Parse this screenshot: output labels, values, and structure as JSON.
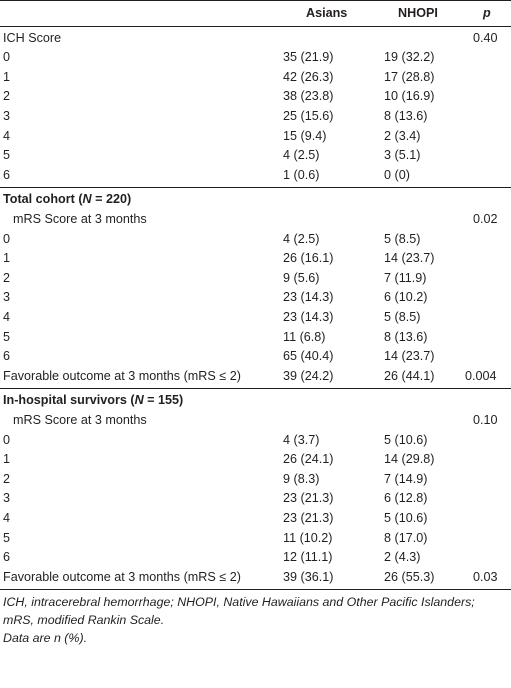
{
  "header": {
    "col_label": "",
    "col_asians": "Asians",
    "col_nhopi": "NHOPI",
    "col_p": "p"
  },
  "ich": {
    "title": "ICH Score",
    "p": "0.40",
    "rows": [
      {
        "label": "0",
        "asians": "35 (21.9)",
        "nhopi": "19 (32.2)"
      },
      {
        "label": "1",
        "asians": "42 (26.3)",
        "nhopi": "17 (28.8)"
      },
      {
        "label": "2",
        "asians": "38 (23.8)",
        "nhopi": "10 (16.9)"
      },
      {
        "label": "3",
        "asians": "25 (15.6)",
        "nhopi": "8 (13.6)"
      },
      {
        "label": "4",
        "asians": "15 (9.4)",
        "nhopi": "2 (3.4)"
      },
      {
        "label": "5",
        "asians": "4 (2.5)",
        "nhopi": "3 (5.1)"
      },
      {
        "label": "6",
        "asians": "1 (0.6)",
        "nhopi": "0 (0)"
      }
    ]
  },
  "total": {
    "heading_prefix": "Total cohort (",
    "heading_n": "N",
    "heading_suffix": " = 220)",
    "mrs_title": "mRS Score at 3 months",
    "p": "0.02",
    "rows": [
      {
        "label": "0",
        "asians": "4 (2.5)",
        "nhopi": "5 (8.5)"
      },
      {
        "label": "1",
        "asians": "26 (16.1)",
        "nhopi": "14 (23.7)"
      },
      {
        "label": "2",
        "asians": "9 (5.6)",
        "nhopi": "7 (11.9)"
      },
      {
        "label": "3",
        "asians": "23 (14.3)",
        "nhopi": "6 (10.2)"
      },
      {
        "label": "4",
        "asians": "23 (14.3)",
        "nhopi": "5 (8.5)"
      },
      {
        "label": "5",
        "asians": "11 (6.8)",
        "nhopi": "8 (13.6)"
      },
      {
        "label": "6",
        "asians": "65 (40.4)",
        "nhopi": "14 (23.7)"
      }
    ],
    "favorable": {
      "label": "Favorable outcome at 3 months (mRS ≤ 2)",
      "asians": "39 (24.2)",
      "nhopi": "26 (44.1)",
      "p": "0.004"
    }
  },
  "survivors": {
    "heading_prefix": "In-hospital survivors (",
    "heading_n": "N",
    "heading_suffix": " = 155)",
    "mrs_title": "mRS Score at 3 months",
    "p": "0.10",
    "rows": [
      {
        "label": "0",
        "asians": "4 (3.7)",
        "nhopi": "5 (10.6)"
      },
      {
        "label": "1",
        "asians": "26 (24.1)",
        "nhopi": "14 (29.8)"
      },
      {
        "label": "2",
        "asians": "9 (8.3)",
        "nhopi": "7 (14.9)"
      },
      {
        "label": "3",
        "asians": "23 (21.3)",
        "nhopi": "6 (12.8)"
      },
      {
        "label": "4",
        "asians": "23 (21.3)",
        "nhopi": "5 (10.6)"
      },
      {
        "label": "5",
        "asians": "11 (10.2)",
        "nhopi": "8 (17.0)"
      },
      {
        "label": "6",
        "asians": "12 (11.1)",
        "nhopi": "2 (4.3)"
      }
    ],
    "favorable": {
      "label": "Favorable outcome at 3 months (mRS ≤ 2)",
      "asians": "39 (36.1)",
      "nhopi": "26 (55.3)",
      "p": "0.03"
    }
  },
  "footnote": {
    "line1": "ICH, intracerebral hemorrhage; NHOPI, Native Hawaiians and Other Pacific Islanders;",
    "line2": "mRS, modified Rankin Scale.",
    "line3": "Data are n (%)."
  }
}
